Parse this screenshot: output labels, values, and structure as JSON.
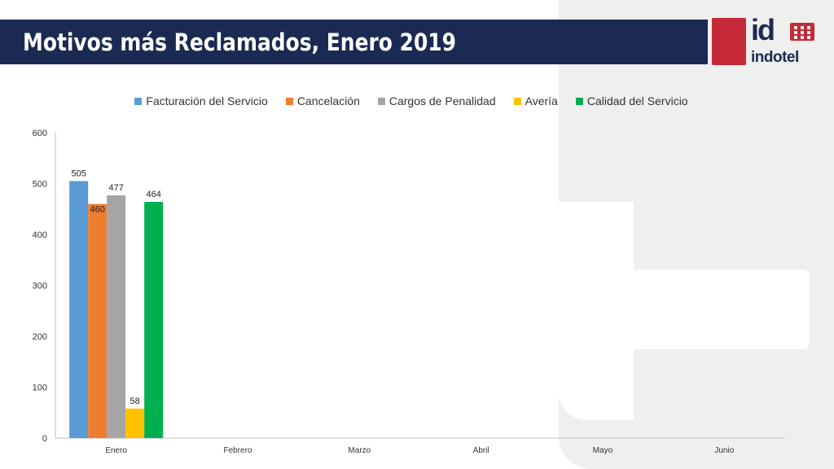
{
  "slide": {
    "title": "Motivos más Reclamados, Enero 2019",
    "logo_text": "indotel",
    "logo_mark": "id"
  },
  "colors": {
    "title_bar": "#1b2a52",
    "logo_red": "#c62a38"
  },
  "chart_data": {
    "type": "bar",
    "categories": [
      "Enero",
      "Febrero",
      "Marzo",
      "Abril",
      "Mayo",
      "Junio"
    ],
    "series": [
      {
        "name": "Facturación del Servicio",
        "color": "#5b9bd5",
        "values": [
          505,
          null,
          null,
          null,
          null,
          null
        ]
      },
      {
        "name": "Cancelación",
        "color": "#ed7d31",
        "values": [
          460,
          null,
          null,
          null,
          null,
          null
        ]
      },
      {
        "name": "Cargos de Penalidad",
        "color": "#a5a5a5",
        "values": [
          477,
          null,
          null,
          null,
          null,
          null
        ]
      },
      {
        "name": "Avería",
        "color": "#ffc000",
        "values": [
          58,
          null,
          null,
          null,
          null,
          null
        ]
      },
      {
        "name": "Calidad del Servicio",
        "color": "#00b050",
        "values": [
          464,
          null,
          null,
          null,
          null,
          null
        ]
      }
    ],
    "data_labels": [
      "505",
      "460",
      "477",
      "58",
      "464"
    ],
    "ylim": [
      0,
      600
    ],
    "yticks": [
      0,
      100,
      200,
      300,
      400,
      500,
      600
    ],
    "title": "",
    "xlabel": "",
    "ylabel": "",
    "legend_position": "top",
    "grid": false
  }
}
